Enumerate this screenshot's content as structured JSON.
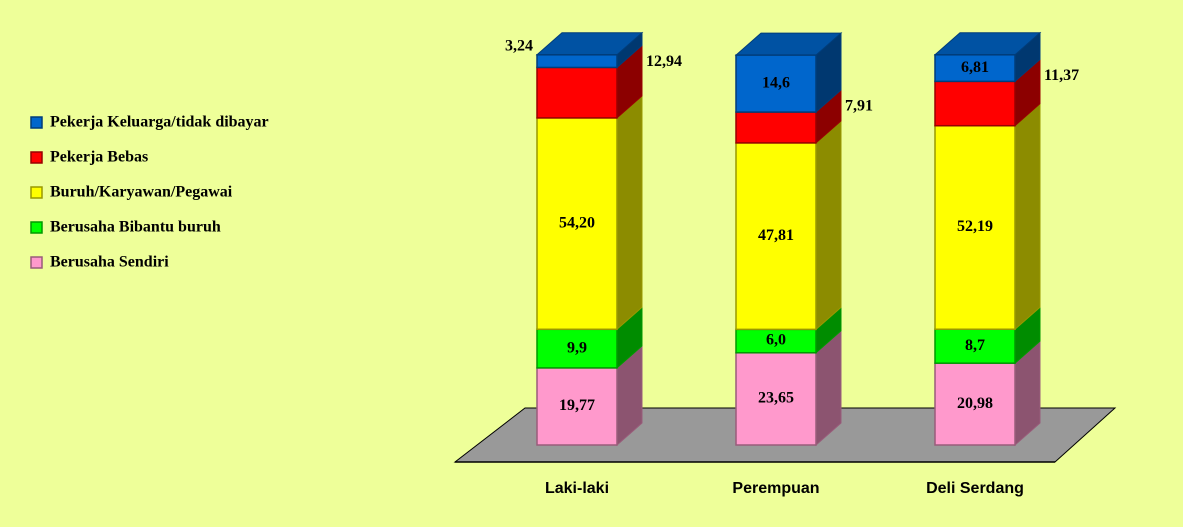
{
  "chart_data": {
    "type": "bar3d-stacked",
    "categories": [
      "Laki-laki",
      "Perempuan",
      "Deli Serdang"
    ],
    "series": [
      {
        "name": "Berusaha Sendiri",
        "color": "#ff99cc",
        "values": [
          19.77,
          23.65,
          20.98
        ],
        "value_labels": [
          "19,77",
          "23,65",
          "20,98"
        ]
      },
      {
        "name": "Berusaha Bibantu buruh",
        "color": "#00ff00",
        "values": [
          9.9,
          6.0,
          8.7
        ],
        "value_labels": [
          "9,9",
          "6,0",
          "8,7"
        ]
      },
      {
        "name": "Buruh/Karyawan/Pegawai",
        "color": "#ffff00",
        "values": [
          54.2,
          47.81,
          52.19
        ],
        "value_labels": [
          "54,20",
          "47,81",
          "52,19"
        ]
      },
      {
        "name": "Pekerja Bebas",
        "color": "#ff0000",
        "values": [
          12.94,
          7.91,
          11.37
        ],
        "value_labels": [
          "12,94",
          "7,91",
          "11,37"
        ]
      },
      {
        "name": "Pekerja Keluarga/tidak dibayar",
        "color": "#0066cc",
        "values": [
          3.24,
          14.6,
          6.81
        ],
        "value_labels": [
          "3,24",
          "14,6",
          "6,81"
        ]
      }
    ]
  }
}
